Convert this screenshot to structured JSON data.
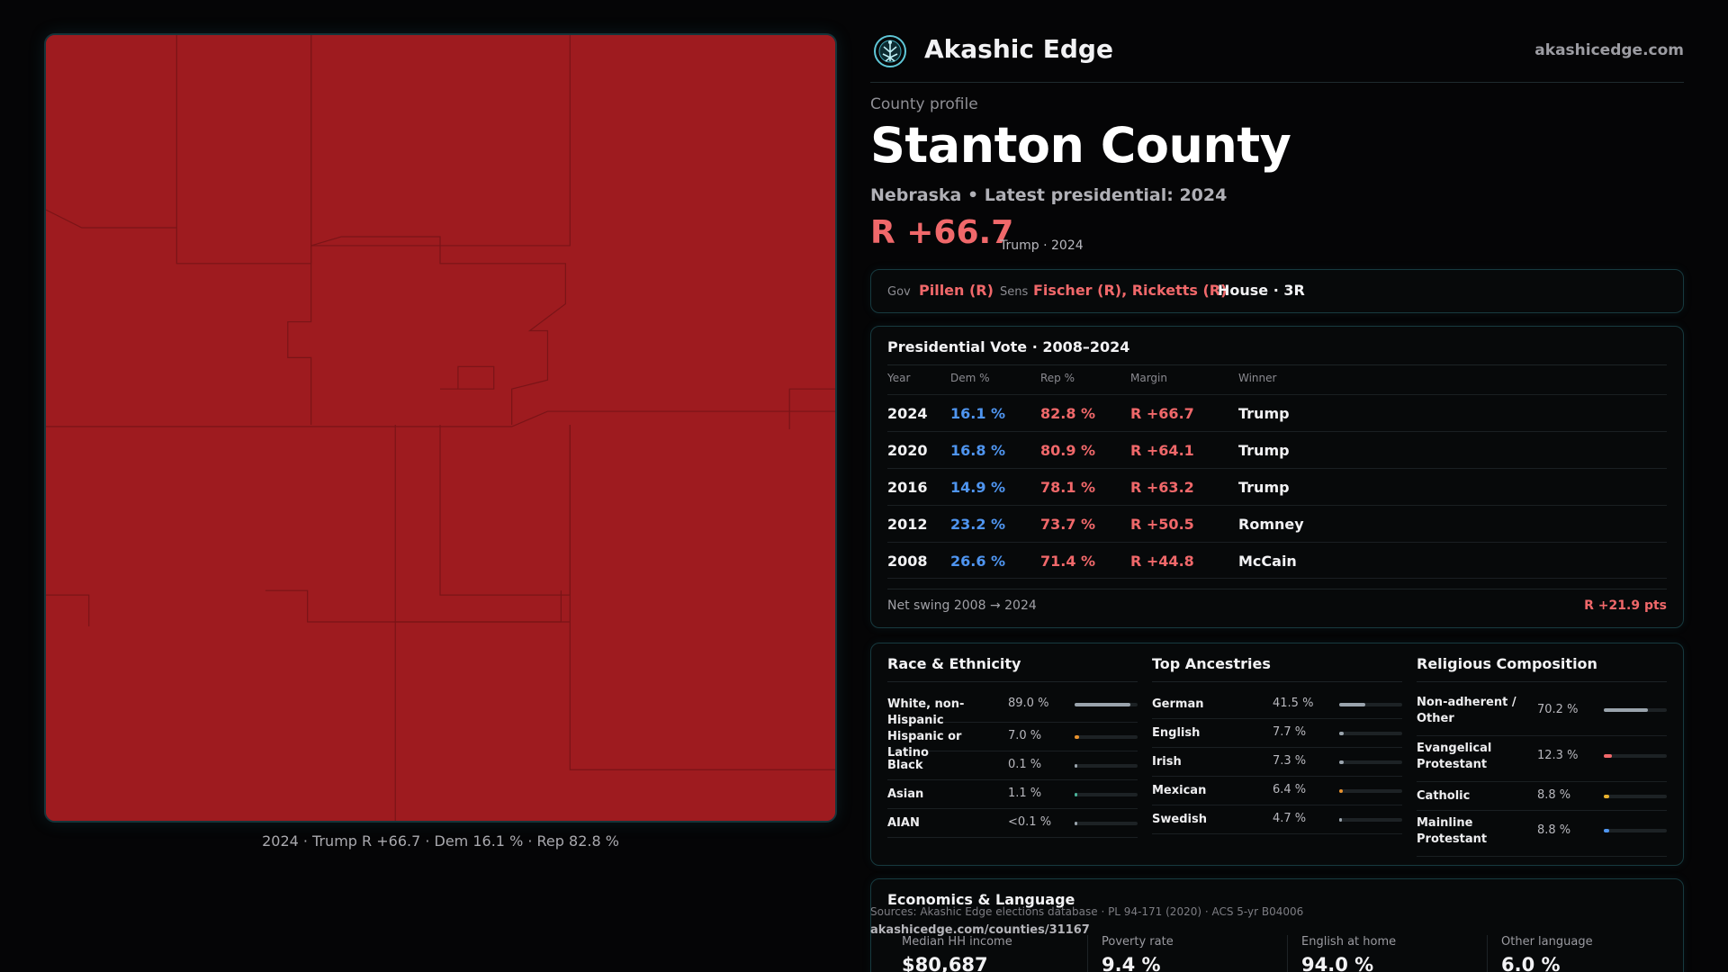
{
  "map": {
    "fill_color": "#9e1b1f",
    "caption": "2024 · Trump R +66.7 · Dem 16.1 % · Rep 82.8 %"
  },
  "brand": {
    "name": "Akashic Edge",
    "url": "akashicedge.com",
    "logo_icon": "tree-of-life-icon"
  },
  "profile": {
    "kicker": "County profile",
    "title": "Stanton County",
    "subtitle": "Nebraska • Latest presidential: 2024",
    "margin": "R +66.7",
    "margin_note": "Trump · 2024"
  },
  "officials": {
    "gov_label": "Gov",
    "gov_value": "Pillen (R)",
    "sens_label": "Sens",
    "sens_value": "Fischer (R), Ricketts (R)",
    "house_value": "House · 3R"
  },
  "presidential": {
    "title": "Presidential Vote · 2008–2024",
    "headers": [
      "Year",
      "Dem %",
      "Rep %",
      "Margin",
      "Winner"
    ],
    "rows": [
      {
        "year": "2024",
        "dem": "16.1 %",
        "rep": "82.8 %",
        "margin": "R +66.7",
        "winner": "Trump"
      },
      {
        "year": "2020",
        "dem": "16.8 %",
        "rep": "80.9 %",
        "margin": "R +64.1",
        "winner": "Trump"
      },
      {
        "year": "2016",
        "dem": "14.9 %",
        "rep": "78.1 %",
        "margin": "R +63.2",
        "winner": "Trump"
      },
      {
        "year": "2012",
        "dem": "23.2 %",
        "rep": "73.7 %",
        "margin": "R +50.5",
        "winner": "Romney"
      },
      {
        "year": "2008",
        "dem": "26.6 %",
        "rep": "71.4 %",
        "margin": "R +44.8",
        "winner": "McCain"
      }
    ],
    "swing_label": "Net swing 2008 → 2024",
    "swing_value": "R +21.9 pts"
  },
  "race": {
    "title": "Race & Ethnicity",
    "items": [
      {
        "name": "White, non-Hispanic",
        "pct": "89.0 %",
        "share": 0.89,
        "color": "#9aa4ad"
      },
      {
        "name": "Hispanic or Latino",
        "pct": "7.0 %",
        "share": 0.07,
        "color": "#e8922e"
      },
      {
        "name": "Black",
        "pct": "0.1 %",
        "share": 0.001,
        "color": "#9aa4ad"
      },
      {
        "name": "Asian",
        "pct": "1.1 %",
        "share": 0.011,
        "color": "#4bb39a"
      },
      {
        "name": "AIAN",
        "pct": "<0.1 %",
        "share": 0.0005,
        "color": "#9aa4ad"
      }
    ]
  },
  "ancestries": {
    "title": "Top Ancestries",
    "items": [
      {
        "name": "German",
        "pct": "41.5 %",
        "share": 0.415,
        "color": "#9aa4ad"
      },
      {
        "name": "English",
        "pct": "7.7 %",
        "share": 0.077,
        "color": "#9aa4ad"
      },
      {
        "name": "Irish",
        "pct": "7.3 %",
        "share": 0.073,
        "color": "#9aa4ad"
      },
      {
        "name": "Mexican",
        "pct": "6.4 %",
        "share": 0.064,
        "color": "#e8922e"
      },
      {
        "name": "Swedish",
        "pct": "4.7 %",
        "share": 0.047,
        "color": "#9aa4ad"
      }
    ]
  },
  "religion": {
    "title": "Religious Composition",
    "items": [
      {
        "name": "Non-adherent / Other",
        "pct": "70.2 %",
        "share": 0.702,
        "color": "#9aa4ad"
      },
      {
        "name": "Evangelical Protestant",
        "pct": "12.3 %",
        "share": 0.123,
        "color": "#f0686a"
      },
      {
        "name": "Catholic",
        "pct": "8.8 %",
        "share": 0.088,
        "color": "#e8b12e"
      },
      {
        "name": "Mainline Protestant",
        "pct": "8.8 %",
        "share": 0.088,
        "color": "#4f95f0"
      }
    ]
  },
  "economics": {
    "title": "Economics & Language",
    "stats": [
      {
        "label": "Median HH income",
        "value": "$80,687"
      },
      {
        "label": "Poverty rate",
        "value": "9.4 %"
      },
      {
        "label": "English at home",
        "value": "94.0 %"
      },
      {
        "label": "Other language",
        "value": "6.0 %"
      }
    ]
  },
  "footer": {
    "sources": "Sources: Akashic Edge elections database · PL 94-171 (2020) · ACS 5-yr B04006",
    "url": "akashicedge.com/counties/31167"
  }
}
